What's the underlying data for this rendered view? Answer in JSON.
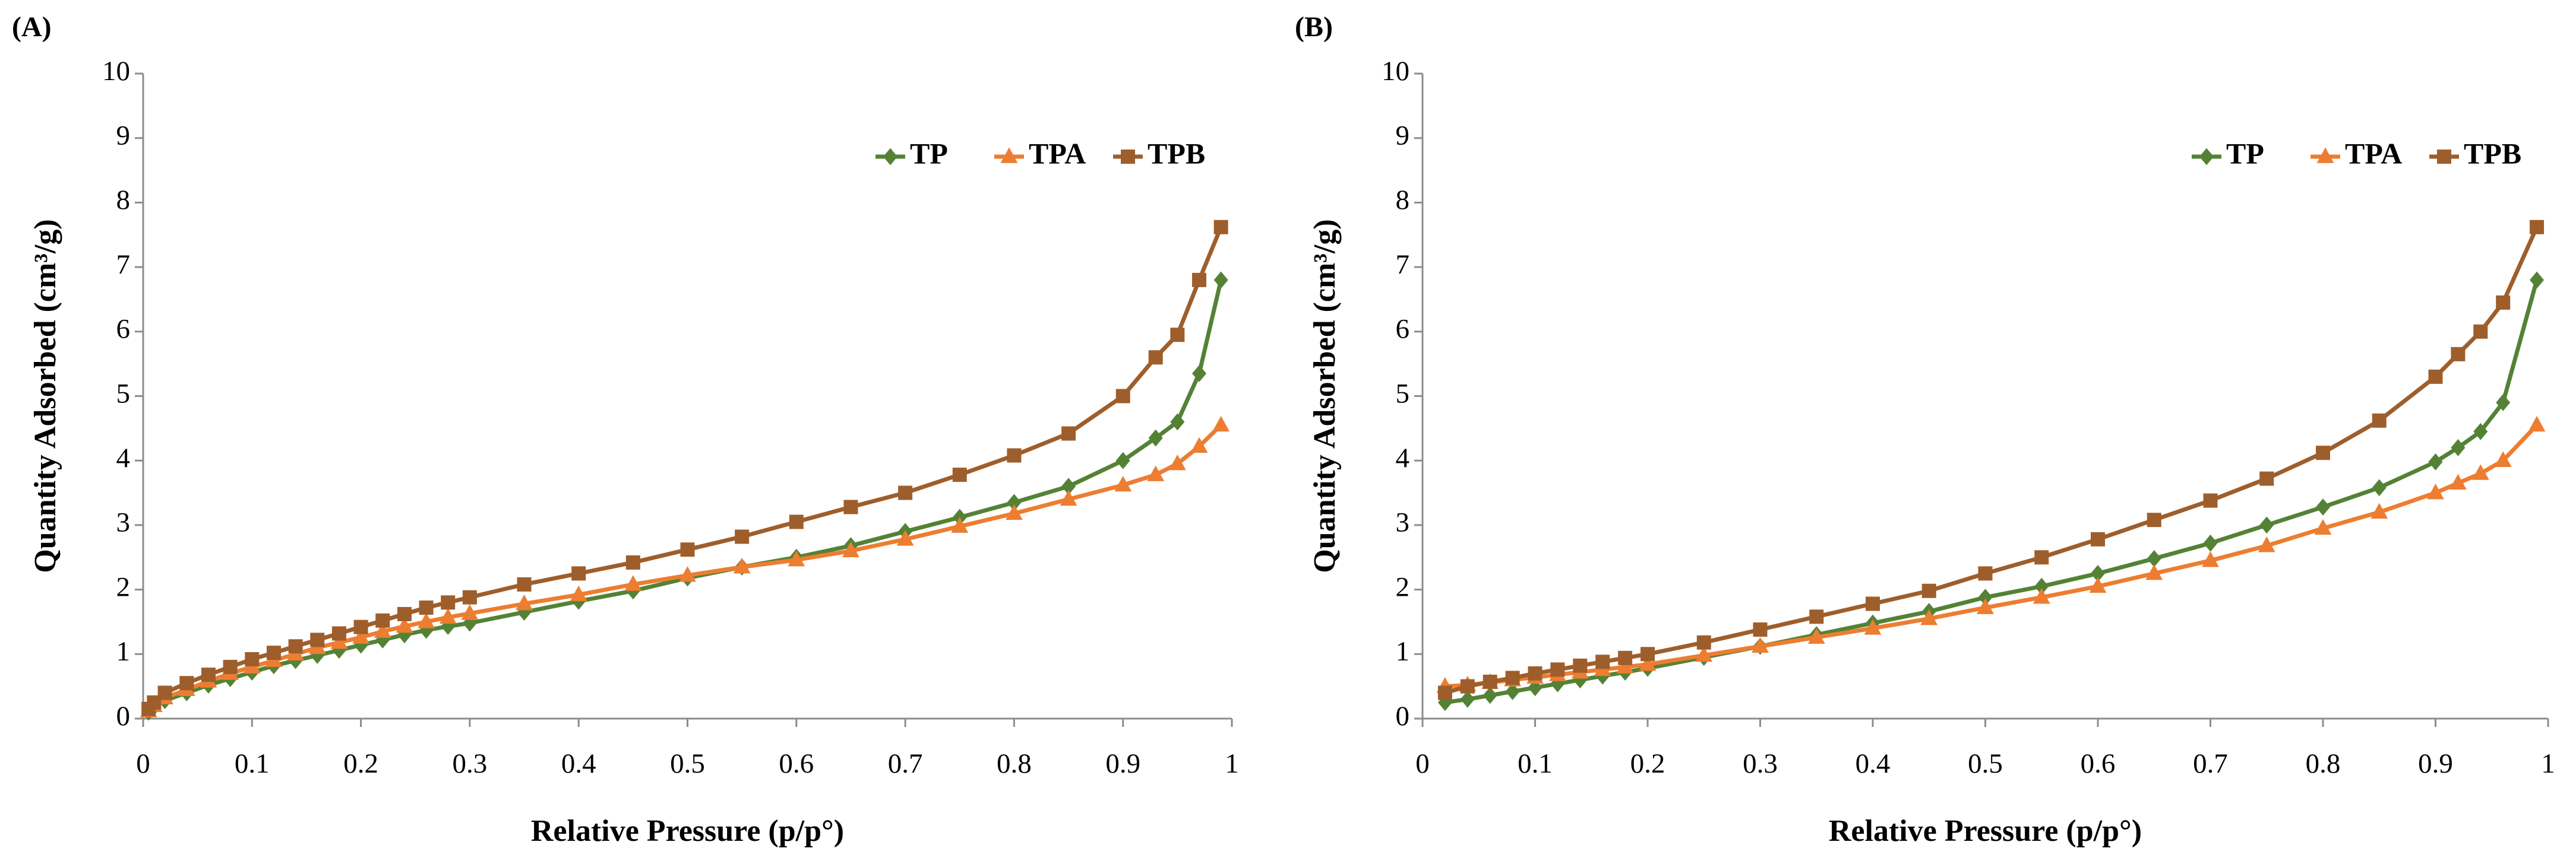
{
  "chart_data": [
    {
      "type": "line",
      "panel_label": "(A)",
      "xlabel": "Relative Pressure (p/p°)",
      "ylabel": "Quantity Adsorbed (cm³/g)",
      "x": [
        0.005,
        0.01,
        0.02,
        0.04,
        0.06,
        0.08,
        0.1,
        0.12,
        0.14,
        0.16,
        0.18,
        0.2,
        0.22,
        0.24,
        0.26,
        0.28,
        0.3,
        0.35,
        0.4,
        0.45,
        0.5,
        0.55,
        0.6,
        0.65,
        0.7,
        0.75,
        0.8,
        0.85,
        0.9,
        0.93,
        0.95,
        0.97,
        0.99
      ],
      "series": [
        {
          "name": "TP",
          "color": "#548235",
          "marker": "diamond",
          "values": [
            0.1,
            0.18,
            0.28,
            0.4,
            0.52,
            0.62,
            0.72,
            0.82,
            0.9,
            0.98,
            1.06,
            1.14,
            1.22,
            1.3,
            1.37,
            1.43,
            1.48,
            1.65,
            1.82,
            1.98,
            2.18,
            2.35,
            2.5,
            2.68,
            2.9,
            3.12,
            3.35,
            3.6,
            4.0,
            4.35,
            4.6,
            5.35,
            6.8
          ]
        },
        {
          "name": "TPA",
          "color": "#ed7d31",
          "marker": "triangle",
          "values": [
            0.12,
            0.2,
            0.32,
            0.45,
            0.58,
            0.7,
            0.8,
            0.9,
            1.0,
            1.1,
            1.18,
            1.26,
            1.35,
            1.43,
            1.5,
            1.57,
            1.63,
            1.78,
            1.92,
            2.08,
            2.22,
            2.35,
            2.46,
            2.6,
            2.78,
            2.98,
            3.18,
            3.4,
            3.62,
            3.78,
            3.95,
            4.22,
            4.55
          ]
        },
        {
          "name": "TPB",
          "color": "#9e5e2b",
          "marker": "square",
          "values": [
            0.15,
            0.25,
            0.4,
            0.55,
            0.68,
            0.8,
            0.92,
            1.02,
            1.12,
            1.22,
            1.32,
            1.42,
            1.52,
            1.62,
            1.72,
            1.8,
            1.88,
            2.08,
            2.25,
            2.42,
            2.62,
            2.82,
            3.05,
            3.28,
            3.5,
            3.78,
            4.08,
            4.42,
            5.0,
            5.6,
            5.95,
            6.8,
            7.62
          ]
        }
      ],
      "xlim": [
        0,
        1
      ],
      "xticks": [
        0,
        0.1,
        0.2,
        0.3,
        0.4,
        0.5,
        0.6,
        0.7,
        0.8,
        0.9,
        1
      ],
      "ylim": [
        0,
        10
      ],
      "yticks": [
        0,
        1,
        2,
        3,
        4,
        5,
        6,
        7,
        8,
        9,
        10
      ],
      "legend": "upper right"
    },
    {
      "type": "line",
      "panel_label": "(B)",
      "xlabel": "Relative Pressure (p/p°)",
      "ylabel": "Quantity Adsorbed (cm³/g)",
      "x": [
        0.02,
        0.04,
        0.06,
        0.08,
        0.1,
        0.12,
        0.14,
        0.16,
        0.18,
        0.2,
        0.25,
        0.3,
        0.35,
        0.4,
        0.45,
        0.5,
        0.55,
        0.6,
        0.65,
        0.7,
        0.75,
        0.8,
        0.85,
        0.9,
        0.92,
        0.94,
        0.96,
        0.99
      ],
      "series": [
        {
          "name": "TP",
          "color": "#548235",
          "marker": "diamond",
          "values": [
            0.25,
            0.3,
            0.36,
            0.42,
            0.48,
            0.54,
            0.6,
            0.66,
            0.72,
            0.78,
            0.95,
            1.12,
            1.3,
            1.48,
            1.66,
            1.88,
            2.05,
            2.25,
            2.48,
            2.72,
            3.0,
            3.28,
            3.58,
            3.98,
            4.2,
            4.45,
            4.9,
            6.8
          ]
        },
        {
          "name": "TPA",
          "color": "#ed7d31",
          "marker": "triangle",
          "values": [
            0.5,
            0.52,
            0.56,
            0.6,
            0.64,
            0.68,
            0.72,
            0.76,
            0.8,
            0.84,
            0.98,
            1.12,
            1.26,
            1.4,
            1.55,
            1.72,
            1.88,
            2.05,
            2.25,
            2.45,
            2.68,
            2.95,
            3.2,
            3.5,
            3.65,
            3.8,
            4.0,
            4.55
          ]
        },
        {
          "name": "TPB",
          "color": "#9e5e2b",
          "marker": "square",
          "values": [
            0.4,
            0.5,
            0.57,
            0.63,
            0.7,
            0.76,
            0.82,
            0.88,
            0.94,
            1.0,
            1.18,
            1.38,
            1.58,
            1.78,
            1.98,
            2.25,
            2.5,
            2.78,
            3.08,
            3.38,
            3.72,
            4.12,
            4.62,
            5.3,
            5.65,
            6.0,
            6.45,
            7.62
          ]
        }
      ],
      "xlim": [
        0,
        1
      ],
      "xticks": [
        0,
        0.1,
        0.2,
        0.3,
        0.4,
        0.5,
        0.6,
        0.7,
        0.8,
        0.9,
        1
      ],
      "ylim": [
        0,
        10
      ],
      "yticks": [
        0,
        1,
        2,
        3,
        4,
        5,
        6,
        7,
        8,
        9,
        10
      ],
      "legend": "upper right"
    }
  ]
}
